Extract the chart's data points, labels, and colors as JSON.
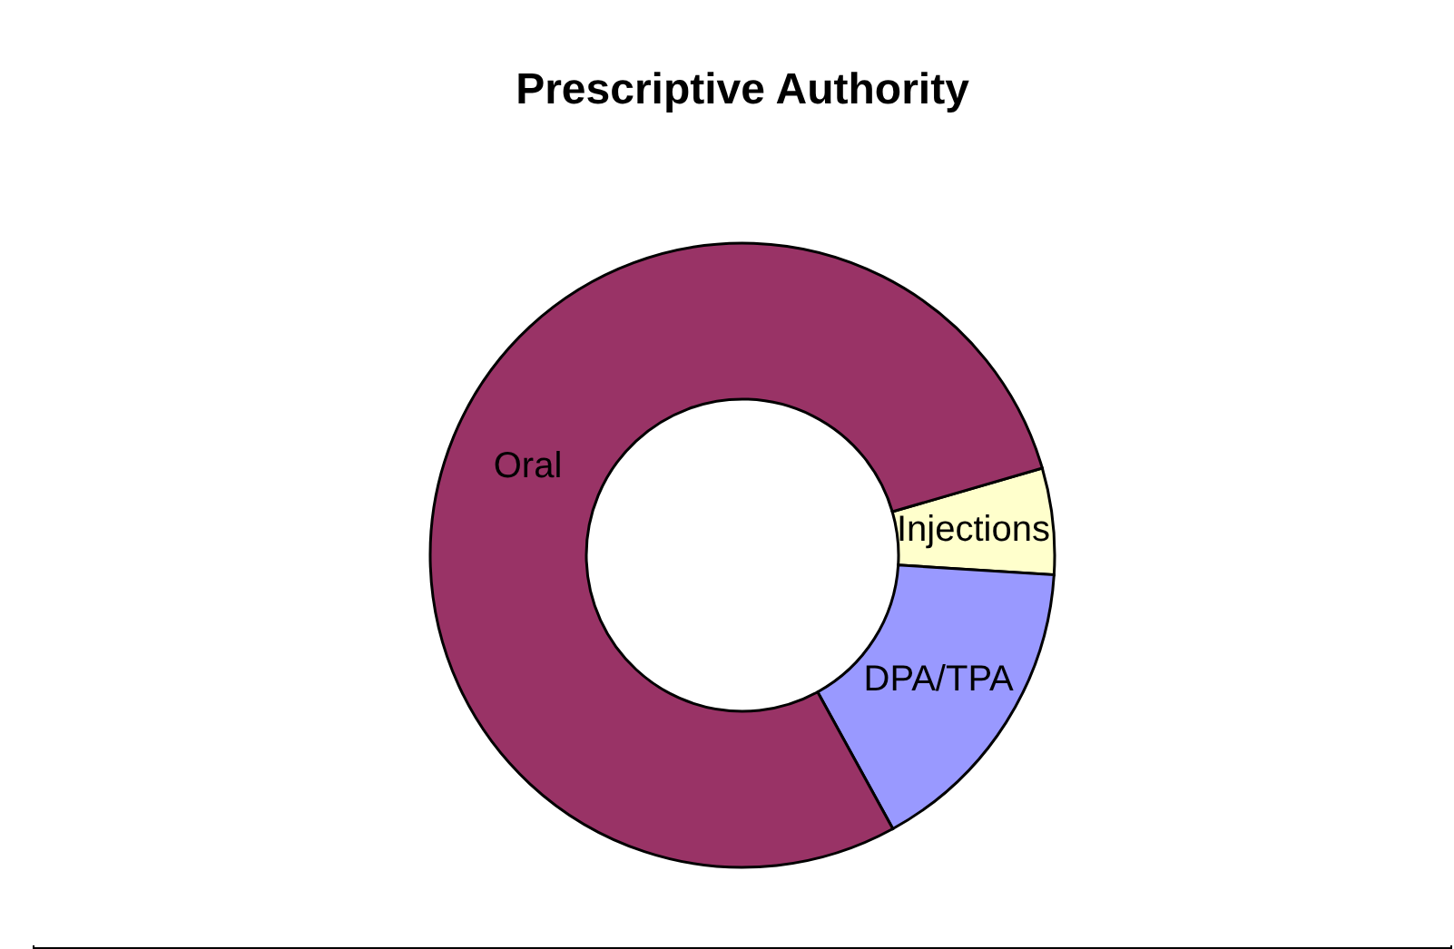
{
  "chart_data": {
    "type": "donut",
    "title": "Prescriptive Authority",
    "categories": [
      "Injections",
      "DPA/TPA",
      "Oral"
    ],
    "values": [
      5.5,
      16,
      78.5
    ],
    "colors": [
      "#ffffcc",
      "#9999ff",
      "#993366"
    ],
    "legend": false
  }
}
